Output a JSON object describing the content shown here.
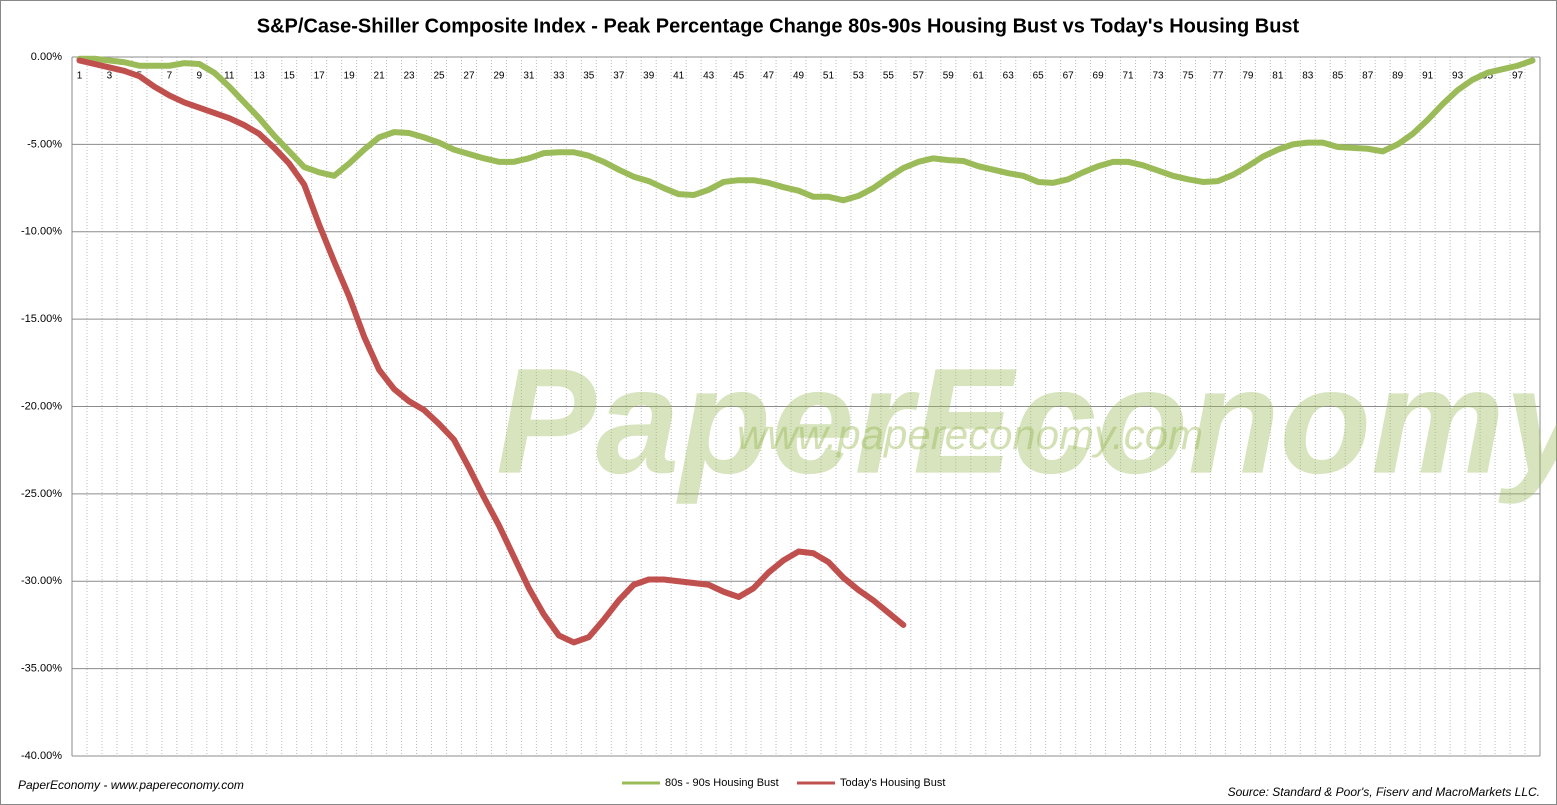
{
  "chart_data": {
    "type": "line",
    "title": "S&P/Case-Shiller Composite Index - Peak Percentage Change 80s-90s Housing Bust vs Today's Housing Bust",
    "annotations": [
      "PaperEconomy",
      "www.papereconomy.com"
    ],
    "footer_left": "PaperEconomy - www.papereconomy.com",
    "source": "Source: Standard & Poor's, Fiserv and MacroMarkets LLC.",
    "categories": [
      "1",
      null,
      "3",
      null,
      "5",
      null,
      "7",
      null,
      "9",
      null,
      "11",
      null,
      "13",
      null,
      "15",
      null,
      "17",
      null,
      "19",
      null,
      "21",
      null,
      "23",
      null,
      "25",
      null,
      "27",
      null,
      "29",
      null,
      "31",
      null,
      "33",
      null,
      "35",
      null,
      "37",
      null,
      "39",
      null,
      "41",
      null,
      "43",
      null,
      "45",
      null,
      "47",
      null,
      "49",
      null,
      "51",
      null,
      "53",
      null,
      "55",
      null,
      "57",
      null,
      "59",
      null,
      "61",
      null,
      "63",
      null,
      "65",
      null,
      "67",
      null,
      "69",
      null,
      "71",
      null,
      "73",
      null,
      "75",
      null,
      "77",
      null,
      "79",
      null,
      "81",
      null,
      "83",
      null,
      "85",
      null,
      "87",
      null,
      "89",
      null,
      "91",
      null,
      "93",
      null,
      "95",
      null,
      "97",
      null
    ],
    "series": [
      {
        "name": "80s - 90s Housing Bust",
        "color": "#9bbb59",
        "values": [
          -0.1,
          -0.1,
          -0.2,
          -0.3,
          -0.5,
          -0.5,
          -0.5,
          -0.35,
          -0.4,
          -0.9,
          -1.7,
          -2.6,
          -3.5,
          -4.5,
          -5.4,
          -6.3,
          -6.6,
          -6.8,
          -6.1,
          -5.3,
          -4.6,
          -4.3,
          -4.35,
          -4.6,
          -4.9,
          -5.3,
          -5.55,
          -5.8,
          -6.0,
          -6.0,
          -5.8,
          -5.5,
          -5.45,
          -5.45,
          -5.65,
          -6.0,
          -6.45,
          -6.85,
          -7.1,
          -7.5,
          -7.85,
          -7.9,
          -7.6,
          -7.15,
          -7.05,
          -7.05,
          -7.2,
          -7.45,
          -7.65,
          -8.0,
          -8.0,
          -8.2,
          -7.95,
          -7.5,
          -6.9,
          -6.35,
          -6.0,
          -5.8,
          -5.9,
          -5.95,
          -6.25,
          -6.45,
          -6.65,
          -6.8,
          -7.15,
          -7.2,
          -7.0,
          -6.6,
          -6.25,
          -6.0,
          -6.0,
          -6.2,
          -6.5,
          -6.8,
          -7.0,
          -7.15,
          -7.1,
          -6.75,
          -6.25,
          -5.7,
          -5.3,
          -5.0,
          -4.9,
          -4.9,
          -5.15,
          -5.2,
          -5.25,
          -5.4,
          -5.0,
          -4.4,
          -3.6,
          -2.7,
          -1.9,
          -1.3,
          -0.9,
          -0.7,
          -0.5,
          -0.2
        ]
      },
      {
        "name": "Today's Housing Bust",
        "color": "#c0504d",
        "values": [
          -0.2,
          -0.4,
          -0.6,
          -0.8,
          -1.1,
          -1.7,
          -2.2,
          -2.6,
          -2.9,
          -3.2,
          -3.5,
          -3.9,
          -4.4,
          -5.2,
          -6.1,
          -7.3,
          -9.6,
          -11.7,
          -13.7,
          -16.0,
          -17.9,
          -19.0,
          -19.7,
          -20.2,
          -21.0,
          -21.9,
          -23.5,
          -25.2,
          -26.8,
          -28.6,
          -30.4,
          -31.9,
          -33.1,
          -33.5,
          -33.2,
          -32.2,
          -31.1,
          -30.2,
          -29.9,
          -29.9,
          -30.0,
          -30.1,
          -30.2,
          -30.6,
          -30.9,
          -30.4,
          -29.5,
          -28.8,
          -28.3,
          -28.4,
          -28.9,
          -29.8,
          -30.5,
          -31.1,
          -31.8,
          -32.5,
          null,
          null,
          null,
          null,
          null,
          null,
          null,
          null,
          null,
          null,
          null,
          null,
          null,
          null,
          null,
          null,
          null,
          null,
          null,
          null,
          null,
          null,
          null,
          null,
          null,
          null,
          null,
          null,
          null,
          null,
          null,
          null,
          null,
          null,
          null,
          null,
          null,
          null,
          null,
          null,
          null,
          null
        ]
      }
    ],
    "ylim": [
      -40,
      0
    ],
    "yticks": [
      {
        "value": 0,
        "label": "0.00%"
      },
      {
        "value": -5,
        "label": "-5.00%"
      },
      {
        "value": -10,
        "label": "-10.00%"
      },
      {
        "value": -15,
        "label": "-15.00%"
      },
      {
        "value": -20,
        "label": "-20.00%"
      },
      {
        "value": -25,
        "label": "-25.00%"
      },
      {
        "value": -30,
        "label": "-30.00%"
      },
      {
        "value": -35,
        "label": "-35.00%"
      },
      {
        "value": -40,
        "label": "-40.00%"
      }
    ],
    "grid": true,
    "legend": "bottom"
  }
}
